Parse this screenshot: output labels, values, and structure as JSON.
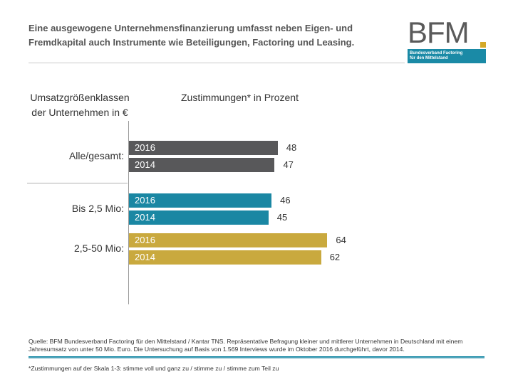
{
  "title": "Eine ausgewogene Unternehmensfinanzierung umfasst neben Eigen- und Fremdkapital auch Instrumente wie Beteiligungen, Factoring und Leasing.",
  "logo": {
    "letters": "BFM",
    "line1": "Bundesverband Factoring",
    "line2": "für den Mittelstand",
    "colors": {
      "gray": "#5a5a5a",
      "band": "#1a8aa6",
      "dot": "#d4a929"
    }
  },
  "header": {
    "left": "Umsatzgrößenklassen der Unternehmen in €",
    "right": "Zustimmungen* in Prozent"
  },
  "chart_data": {
    "type": "bar",
    "orientation": "horizontal",
    "title": "",
    "xlabel": "Zustimmungen* in Prozent",
    "ylabel": "Umsatzgrößenklassen der Unternehmen in €",
    "categories": [
      "Alle/gesamt:",
      "Bis 2,5 Mio:",
      "2,5-50 Mio:"
    ],
    "series_labels": [
      "2016",
      "2014"
    ],
    "groups": [
      {
        "label": "Alle/gesamt:",
        "color": "#58585a",
        "bars": [
          {
            "year": "2016",
            "value": 48
          },
          {
            "year": "2014",
            "value": 47
          }
        ]
      },
      {
        "label": "Bis 2,5 Mio:",
        "color": "#1a87a3",
        "bars": [
          {
            "year": "2016",
            "value": 46
          },
          {
            "year": "2014",
            "value": 45
          }
        ]
      },
      {
        "label": "2,5-50 Mio:",
        "color": "#c9a93e",
        "bars": [
          {
            "year": "2016",
            "value": 64
          },
          {
            "year": "2014",
            "value": 62
          }
        ]
      }
    ],
    "xlim": [
      0,
      100
    ],
    "grid": false,
    "legend": "none"
  },
  "footer": {
    "source": "Quelle: BFM Bundesverband Factoring für den Mittelstand / Kantar TNS. Repräsentative Befragung kleiner und mittlerer Unternehmen in Deutschland mit einem Jahresumsatz von unter 50 Mio. Euro. Die Untersuchung auf Basis von 1.569 Interviews wurde im Oktober 2016 durchgeführt, davor 2014.",
    "note": "*Zustimmungen auf der Skala 1-3: stimme voll und ganz zu / stimme zu / stimme zum Teil zu"
  }
}
